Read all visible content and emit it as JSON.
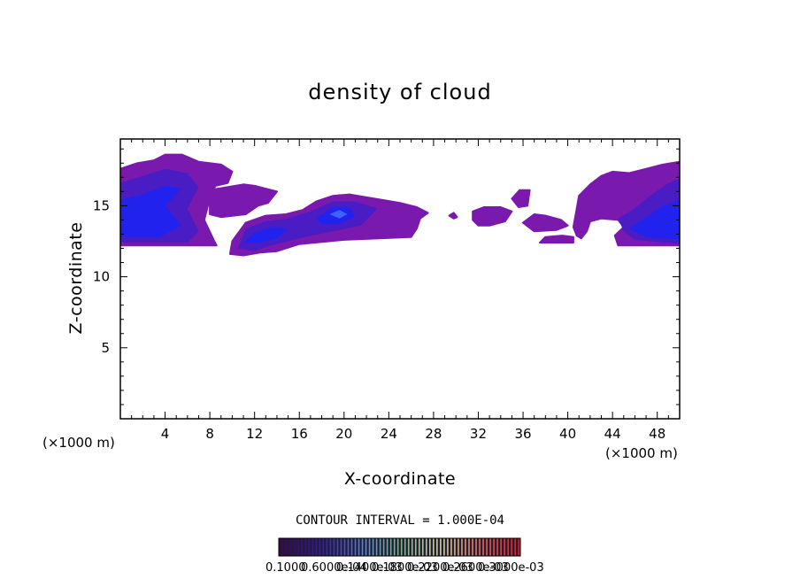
{
  "chart_data": {
    "type": "heatmap",
    "title": "density of cloud",
    "xlabel": "X-coordinate",
    "ylabel": "Z-coordinate",
    "x_unit_left": "(×1000 m)",
    "x_unit_right": "(×1000 m)",
    "xlim": [
      0,
      50
    ],
    "ylim": [
      0,
      19.7
    ],
    "xticks": [
      4,
      8,
      12,
      16,
      20,
      24,
      28,
      32,
      36,
      40,
      44,
      48
    ],
    "yticks": [
      5,
      10,
      15
    ],
    "contour_interval_label": "CONTOUR INTERVAL = 1.000E-04",
    "colorbar_labels": [
      "0.1000",
      "0.6000e-04",
      "0.1400e-03",
      "0.1800e-03",
      "0.2200e-03",
      "0.2600e-03",
      "0.3000e-03"
    ],
    "colors": {
      "outer": "#7a19ad",
      "mid": "#4a1cc4",
      "core": "#2222ee",
      "peak": "#3f62ff"
    },
    "regions": [
      {
        "level": "outer",
        "points": [
          [
            0,
            17.6
          ],
          [
            1.5,
            18.0
          ],
          [
            3,
            18.2
          ],
          [
            4,
            18.6
          ],
          [
            5.5,
            18.6
          ],
          [
            7,
            18.1
          ],
          [
            9,
            17.9
          ],
          [
            10,
            17.4
          ],
          [
            9.6,
            16.6
          ],
          [
            8.5,
            16.4
          ],
          [
            8,
            15.5
          ],
          [
            7.5,
            14.0
          ],
          [
            8.4,
            12.5
          ],
          [
            8.6,
            12.2
          ],
          [
            0,
            12.2
          ]
        ]
      },
      {
        "level": "mid",
        "points": [
          [
            0,
            16.6
          ],
          [
            2,
            17.1
          ],
          [
            4,
            17.6
          ],
          [
            6,
            17.3
          ],
          [
            7,
            16.3
          ],
          [
            6,
            14.8
          ],
          [
            7,
            13.2
          ],
          [
            6,
            12.4
          ],
          [
            0,
            12.4
          ]
        ]
      },
      {
        "level": "core",
        "points": [
          [
            0,
            15.4
          ],
          [
            2,
            15.8
          ],
          [
            4,
            16.4
          ],
          [
            5.5,
            16.2
          ],
          [
            4,
            15.0
          ],
          [
            5.5,
            13.6
          ],
          [
            3.5,
            12.8
          ],
          [
            0,
            12.8
          ]
        ]
      },
      {
        "level": "outer",
        "points": [
          [
            8,
            16.1
          ],
          [
            9.5,
            16.3
          ],
          [
            11,
            16.5
          ],
          [
            12,
            16.4
          ],
          [
            13,
            16.2
          ],
          [
            14,
            16.0
          ],
          [
            13.2,
            15.2
          ],
          [
            12.3,
            15.0
          ],
          [
            11.2,
            14.4
          ],
          [
            9,
            14.2
          ],
          [
            8,
            14.4
          ]
        ]
      },
      {
        "level": "outer",
        "points": [
          [
            9.8,
            11.6
          ],
          [
            10,
            12.5
          ],
          [
            11.2,
            13.8
          ],
          [
            13,
            14.3
          ],
          [
            14.8,
            14.4
          ],
          [
            16.3,
            14.7
          ],
          [
            17.5,
            15.3
          ],
          [
            19,
            15.7
          ],
          [
            20.5,
            15.8
          ],
          [
            22,
            15.6
          ],
          [
            23.5,
            15.4
          ],
          [
            25,
            15.2
          ],
          [
            26.5,
            14.9
          ],
          [
            27.5,
            14.5
          ],
          [
            26.8,
            14.1
          ],
          [
            26.5,
            13.4
          ],
          [
            26,
            12.8
          ],
          [
            20,
            12.6
          ],
          [
            16,
            12.3
          ],
          [
            14,
            11.8
          ],
          [
            12.5,
            11.7
          ],
          [
            11,
            11.5
          ]
        ]
      },
      {
        "level": "mid",
        "points": [
          [
            10.5,
            12.0
          ],
          [
            11.2,
            13.4
          ],
          [
            13,
            13.9
          ],
          [
            15,
            14.1
          ],
          [
            17,
            14.6
          ],
          [
            19,
            15.3
          ],
          [
            21,
            15.3
          ],
          [
            23,
            14.8
          ],
          [
            21.5,
            13.6
          ],
          [
            19,
            13.2
          ],
          [
            16,
            12.7
          ],
          [
            13.5,
            12.2
          ],
          [
            12,
            11.8
          ]
        ]
      },
      {
        "level": "core",
        "points": [
          [
            11,
            12.4
          ],
          [
            12,
            13.1
          ],
          [
            13.5,
            13.5
          ],
          [
            15,
            13.4
          ],
          [
            14,
            12.7
          ],
          [
            12.5,
            12.4
          ]
        ]
      },
      {
        "level": "core",
        "points": [
          [
            17.5,
            14.1
          ],
          [
            19,
            14.9
          ],
          [
            20.5,
            14.9
          ],
          [
            21,
            14.2
          ],
          [
            19.5,
            13.7
          ],
          [
            18,
            13.7
          ]
        ]
      },
      {
        "level": "peak",
        "points": [
          [
            18.7,
            14.4
          ],
          [
            19.6,
            14.7
          ],
          [
            20.3,
            14.4
          ],
          [
            19.6,
            14.1
          ]
        ]
      },
      {
        "level": "outer",
        "points": [
          [
            29.4,
            14.3
          ],
          [
            29.8,
            14.1
          ],
          [
            30.1,
            14.2
          ],
          [
            29.8,
            14.5
          ]
        ]
      },
      {
        "level": "outer",
        "points": [
          [
            31.5,
            14.6
          ],
          [
            32.5,
            14.9
          ],
          [
            34,
            14.9
          ],
          [
            35,
            14.6
          ],
          [
            34.4,
            13.9
          ],
          [
            33,
            13.6
          ],
          [
            32,
            13.6
          ],
          [
            31.5,
            14.0
          ]
        ]
      },
      {
        "level": "outer",
        "points": [
          [
            35,
            15.5
          ],
          [
            35.7,
            16.1
          ],
          [
            36.6,
            16.1
          ],
          [
            36.4,
            15.0
          ],
          [
            35.6,
            14.9
          ]
        ]
      },
      {
        "level": "outer",
        "points": [
          [
            36,
            13.8
          ],
          [
            37,
            14.4
          ],
          [
            38,
            14.3
          ],
          [
            39.4,
            14.0
          ],
          [
            40,
            13.6
          ],
          [
            39,
            13.3
          ],
          [
            37,
            13.2
          ]
        ]
      },
      {
        "level": "outer",
        "points": [
          [
            37.5,
            12.4
          ],
          [
            38,
            12.8
          ],
          [
            39.5,
            12.9
          ],
          [
            40.5,
            12.8
          ],
          [
            40.5,
            12.4
          ]
        ]
      },
      {
        "level": "outer",
        "points": [
          [
            40.5,
            13.5
          ],
          [
            40.8,
            14.8
          ],
          [
            41,
            15.7
          ],
          [
            42,
            16.5
          ],
          [
            43,
            17.1
          ],
          [
            44,
            17.4
          ],
          [
            45.5,
            17.3
          ],
          [
            47,
            17.6
          ],
          [
            48.5,
            17.9
          ],
          [
            50,
            18.1
          ],
          [
            50,
            12.2
          ],
          [
            44.5,
            12.2
          ],
          [
            44.2,
            12.9
          ],
          [
            45,
            13.5
          ],
          [
            44.5,
            14.0
          ],
          [
            43,
            14.1
          ],
          [
            42,
            13.9
          ],
          [
            41.7,
            13.2
          ],
          [
            41.2,
            12.7
          ],
          [
            40.8,
            12.9
          ]
        ]
      },
      {
        "level": "mid",
        "points": [
          [
            44.5,
            14.1
          ],
          [
            46,
            14.8
          ],
          [
            47.5,
            15.8
          ],
          [
            49,
            16.6
          ],
          [
            50,
            16.9
          ],
          [
            50,
            12.3
          ],
          [
            46,
            12.6
          ],
          [
            45,
            13.2
          ]
        ]
      },
      {
        "level": "core",
        "points": [
          [
            45.5,
            13.4
          ],
          [
            47,
            14.2
          ],
          [
            48.5,
            15.0
          ],
          [
            50,
            15.4
          ],
          [
            50,
            12.6
          ],
          [
            47,
            12.8
          ]
        ]
      }
    ]
  }
}
